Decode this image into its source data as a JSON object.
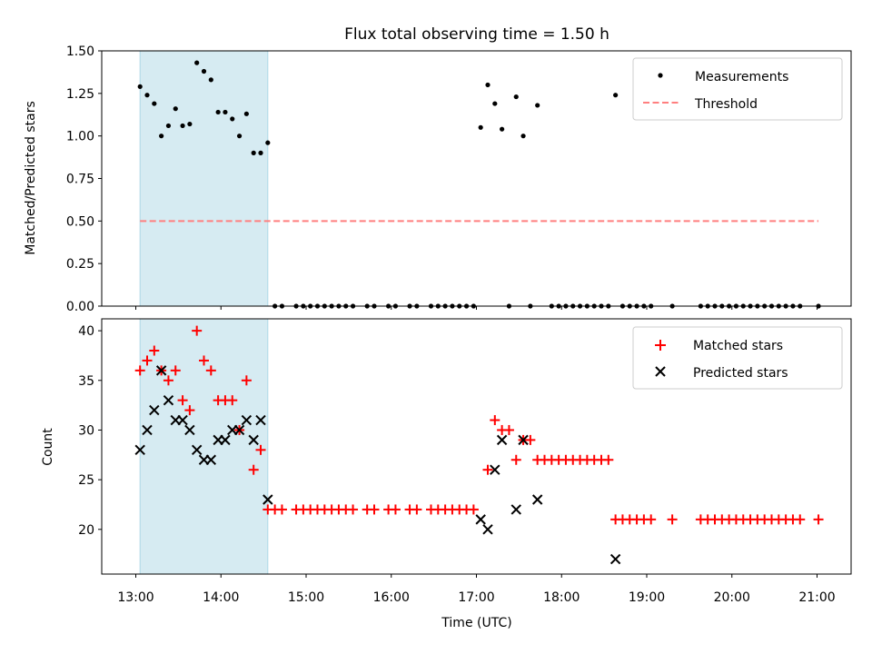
{
  "chart_data": [
    {
      "type": "scatter",
      "title": "Flux total observing time = 1.50 h",
      "ylabel": "Matched/Predicted stars",
      "xlabel": "",
      "xlim": [
        "12:36",
        "21:24"
      ],
      "ylim": [
        0,
        1.5
      ],
      "yticks": [
        "0.00",
        "0.25",
        "0.50",
        "0.75",
        "1.00",
        "1.25",
        "1.50"
      ],
      "xticks": [
        "13:00",
        "14:00",
        "15:00",
        "16:00",
        "17:00",
        "18:00",
        "19:00",
        "20:00",
        "21:00"
      ],
      "highlight_span": {
        "from": "13:03",
        "to": "14:33",
        "color": "#add8e6"
      },
      "grid": false,
      "legend_position": "top-right",
      "series": [
        {
          "name": "Measurements",
          "color": "#000000",
          "marker": "dot",
          "points": [
            [
              "13:03",
              1.29
            ],
            [
              "13:08",
              1.24
            ],
            [
              "13:13",
              1.19
            ],
            [
              "13:18",
              1.0
            ],
            [
              "13:23",
              1.06
            ],
            [
              "13:28",
              1.16
            ],
            [
              "13:33",
              1.06
            ],
            [
              "13:38",
              1.07
            ],
            [
              "13:43",
              1.43
            ],
            [
              "13:48",
              1.38
            ],
            [
              "13:53",
              1.33
            ],
            [
              "13:58",
              1.14
            ],
            [
              "14:03",
              1.14
            ],
            [
              "14:08",
              1.1
            ],
            [
              "14:13",
              1.0
            ],
            [
              "14:18",
              1.13
            ],
            [
              "14:23",
              0.9
            ],
            [
              "14:28",
              0.9
            ],
            [
              "14:33",
              0.96
            ],
            [
              "14:38",
              0
            ],
            [
              "14:43",
              0
            ],
            [
              "14:53",
              0
            ],
            [
              "14:58",
              0
            ],
            [
              "15:03",
              0
            ],
            [
              "15:08",
              0
            ],
            [
              "15:13",
              0
            ],
            [
              "15:18",
              0
            ],
            [
              "15:23",
              0
            ],
            [
              "15:28",
              0
            ],
            [
              "15:33",
              0
            ],
            [
              "15:43",
              0
            ],
            [
              "15:48",
              0
            ],
            [
              "15:58",
              0
            ],
            [
              "16:03",
              0
            ],
            [
              "16:13",
              0
            ],
            [
              "16:18",
              0
            ],
            [
              "16:28",
              0
            ],
            [
              "16:33",
              0
            ],
            [
              "16:38",
              0
            ],
            [
              "16:43",
              0
            ],
            [
              "16:48",
              0
            ],
            [
              "16:53",
              0
            ],
            [
              "16:58",
              0
            ],
            [
              "17:03",
              1.05
            ],
            [
              "17:08",
              1.3
            ],
            [
              "17:13",
              1.19
            ],
            [
              "17:18",
              1.04
            ],
            [
              "17:23",
              0
            ],
            [
              "17:28",
              1.23
            ],
            [
              "17:33",
              1.0
            ],
            [
              "17:38",
              0
            ],
            [
              "17:43",
              1.18
            ],
            [
              "17:53",
              0
            ],
            [
              "17:58",
              0
            ],
            [
              "18:03",
              0
            ],
            [
              "18:08",
              0
            ],
            [
              "18:13",
              0
            ],
            [
              "18:18",
              0
            ],
            [
              "18:23",
              0
            ],
            [
              "18:28",
              0
            ],
            [
              "18:33",
              0
            ],
            [
              "18:38",
              1.24
            ],
            [
              "18:43",
              0
            ],
            [
              "18:48",
              0
            ],
            [
              "18:53",
              0
            ],
            [
              "18:58",
              0
            ],
            [
              "19:03",
              0
            ],
            [
              "19:18",
              0
            ],
            [
              "19:38",
              0
            ],
            [
              "19:43",
              0
            ],
            [
              "19:48",
              0
            ],
            [
              "19:53",
              0
            ],
            [
              "19:58",
              0
            ],
            [
              "20:03",
              0
            ],
            [
              "20:08",
              0
            ],
            [
              "20:13",
              0
            ],
            [
              "20:18",
              0
            ],
            [
              "20:23",
              0
            ],
            [
              "20:28",
              0
            ],
            [
              "20:33",
              0
            ],
            [
              "20:38",
              0
            ],
            [
              "20:43",
              0
            ],
            [
              "20:48",
              0
            ],
            [
              "21:01",
              0
            ]
          ]
        },
        {
          "name": "Threshold",
          "color": "#ff7f7f",
          "style": "dashed",
          "points": [
            [
              "13:03",
              0.5
            ],
            [
              "21:01",
              0.5
            ]
          ]
        }
      ]
    },
    {
      "type": "scatter",
      "title": "",
      "ylabel": "Count",
      "xlabel": "Time (UTC)",
      "xlim": [
        "12:36",
        "21:24"
      ],
      "ylim": [
        15.5,
        41.2
      ],
      "yticks": [
        "20",
        "25",
        "30",
        "35",
        "40"
      ],
      "ytick_values": [
        20,
        25,
        30,
        35,
        40
      ],
      "xticks": [
        "13:00",
        "14:00",
        "15:00",
        "16:00",
        "17:00",
        "18:00",
        "19:00",
        "20:00",
        "21:00"
      ],
      "highlight_span": {
        "from": "13:03",
        "to": "14:33",
        "color": "#add8e6"
      },
      "grid": false,
      "legend_position": "top-right",
      "series": [
        {
          "name": "Matched stars",
          "color": "#ff0000",
          "marker": "plus",
          "points": [
            [
              "13:03",
              36
            ],
            [
              "13:08",
              37
            ],
            [
              "13:13",
              38
            ],
            [
              "13:18",
              36
            ],
            [
              "13:23",
              35
            ],
            [
              "13:28",
              36
            ],
            [
              "13:33",
              33
            ],
            [
              "13:38",
              32
            ],
            [
              "13:43",
              40
            ],
            [
              "13:48",
              37
            ],
            [
              "13:53",
              36
            ],
            [
              "13:58",
              33
            ],
            [
              "14:03",
              33
            ],
            [
              "14:08",
              33
            ],
            [
              "14:13",
              30
            ],
            [
              "14:18",
              35
            ],
            [
              "14:23",
              26
            ],
            [
              "14:28",
              28
            ],
            [
              "14:33",
              22
            ],
            [
              "14:38",
              22
            ],
            [
              "14:43",
              22
            ],
            [
              "14:53",
              22
            ],
            [
              "14:58",
              22
            ],
            [
              "15:03",
              22
            ],
            [
              "15:08",
              22
            ],
            [
              "15:13",
              22
            ],
            [
              "15:18",
              22
            ],
            [
              "15:23",
              22
            ],
            [
              "15:28",
              22
            ],
            [
              "15:33",
              22
            ],
            [
              "15:43",
              22
            ],
            [
              "15:48",
              22
            ],
            [
              "15:58",
              22
            ],
            [
              "16:03",
              22
            ],
            [
              "16:13",
              22
            ],
            [
              "16:18",
              22
            ],
            [
              "16:28",
              22
            ],
            [
              "16:33",
              22
            ],
            [
              "16:38",
              22
            ],
            [
              "16:43",
              22
            ],
            [
              "16:48",
              22
            ],
            [
              "16:53",
              22
            ],
            [
              "16:58",
              22
            ],
            [
              "17:08",
              26
            ],
            [
              "17:13",
              31
            ],
            [
              "17:18",
              30
            ],
            [
              "17:23",
              30
            ],
            [
              "17:28",
              27
            ],
            [
              "17:33",
              29
            ],
            [
              "17:38",
              29
            ],
            [
              "17:43",
              27
            ],
            [
              "17:48",
              27
            ],
            [
              "17:53",
              27
            ],
            [
              "17:58",
              27
            ],
            [
              "18:03",
              27
            ],
            [
              "18:08",
              27
            ],
            [
              "18:13",
              27
            ],
            [
              "18:18",
              27
            ],
            [
              "18:23",
              27
            ],
            [
              "18:28",
              27
            ],
            [
              "18:33",
              27
            ],
            [
              "18:38",
              21
            ],
            [
              "18:43",
              21
            ],
            [
              "18:48",
              21
            ],
            [
              "18:53",
              21
            ],
            [
              "18:58",
              21
            ],
            [
              "19:03",
              21
            ],
            [
              "19:18",
              21
            ],
            [
              "19:38",
              21
            ],
            [
              "19:43",
              21
            ],
            [
              "19:48",
              21
            ],
            [
              "19:53",
              21
            ],
            [
              "19:58",
              21
            ],
            [
              "20:03",
              21
            ],
            [
              "20:08",
              21
            ],
            [
              "20:13",
              21
            ],
            [
              "20:18",
              21
            ],
            [
              "20:23",
              21
            ],
            [
              "20:28",
              21
            ],
            [
              "20:33",
              21
            ],
            [
              "20:38",
              21
            ],
            [
              "20:43",
              21
            ],
            [
              "20:48",
              21
            ],
            [
              "21:01",
              21
            ]
          ]
        },
        {
          "name": "Predicted stars",
          "color": "#000000",
          "marker": "x",
          "points": [
            [
              "13:03",
              28
            ],
            [
              "13:08",
              30
            ],
            [
              "13:13",
              32
            ],
            [
              "13:18",
              36
            ],
            [
              "13:23",
              33
            ],
            [
              "13:28",
              31
            ],
            [
              "13:33",
              31
            ],
            [
              "13:38",
              30
            ],
            [
              "13:43",
              28
            ],
            [
              "13:48",
              27
            ],
            [
              "13:53",
              27
            ],
            [
              "13:58",
              29
            ],
            [
              "14:03",
              29
            ],
            [
              "14:08",
              30
            ],
            [
              "14:13",
              30
            ],
            [
              "14:18",
              31
            ],
            [
              "14:23",
              29
            ],
            [
              "14:28",
              31
            ],
            [
              "14:33",
              23
            ],
            [
              "17:03",
              21
            ],
            [
              "17:08",
              20
            ],
            [
              "17:13",
              26
            ],
            [
              "17:18",
              29
            ],
            [
              "17:28",
              22
            ],
            [
              "17:33",
              29
            ],
            [
              "17:43",
              23
            ],
            [
              "18:38",
              17
            ]
          ]
        }
      ]
    }
  ]
}
